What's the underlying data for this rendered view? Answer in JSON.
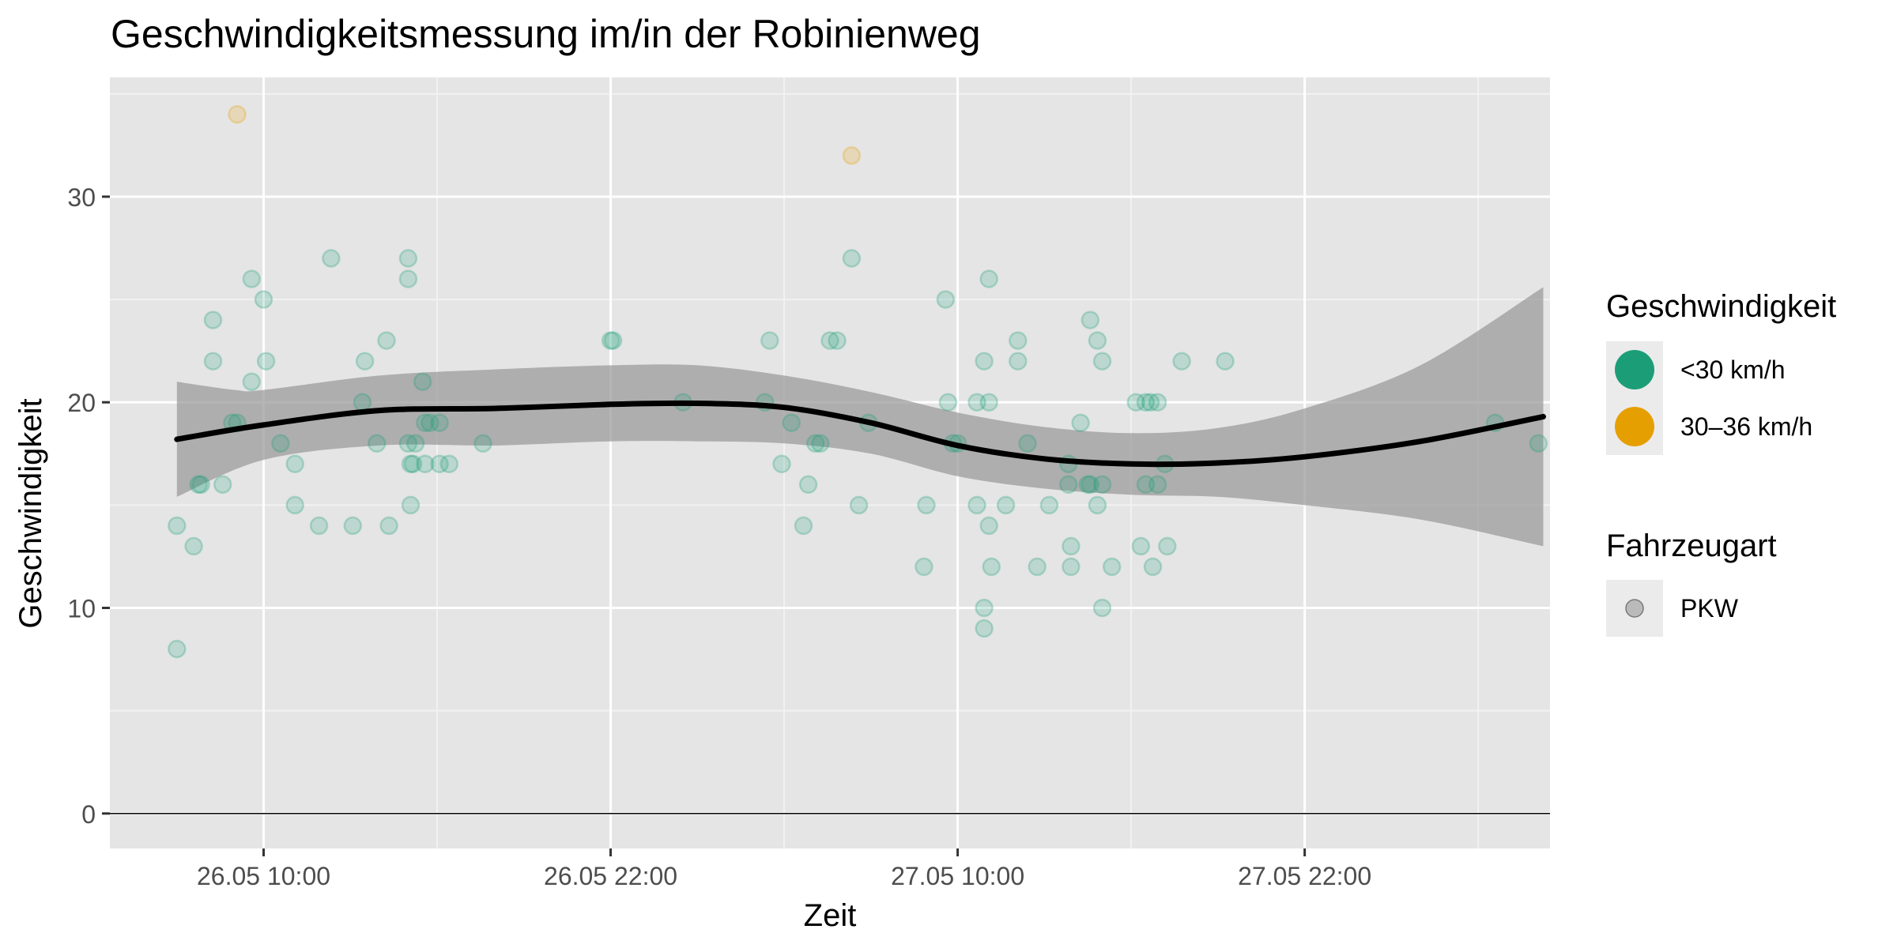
{
  "chart_data": {
    "type": "scatter",
    "title": "Geschwindigkeitsmessung im/in der Robinienweg",
    "xlabel": "Zeit",
    "ylabel": "Geschwindigkeit",
    "x_ticks": [
      "26.05 10:00",
      "26.05 22:00",
      "27.05 10:00",
      "27.05 22:00"
    ],
    "y_ticks": [
      "0",
      "10",
      "20",
      "30"
    ],
    "ylim": [
      -1.7,
      35.8
    ],
    "xlim": [
      "2023-05-26T04:41",
      "2023-05-28T06:29"
    ],
    "grid": true,
    "legend_position": "right",
    "legend": {
      "speed_title": "Geschwindigkeit",
      "speed_items": [
        {
          "label": "<30 km/h",
          "color": "#1b9e77"
        },
        {
          "label": "30–36 km/h",
          "color": "#e69f00"
        }
      ],
      "type_title": "Fahrzeugart",
      "type_items": [
        {
          "label": "PKW",
          "color": "#999999"
        }
      ]
    },
    "series": [
      {
        "category": "<30 km/h",
        "color": "#1b9e77",
        "points": [
          [
            "2023-05-26T07:00",
            8
          ],
          [
            "2023-05-26T07:00",
            14
          ],
          [
            "2023-05-26T07:35",
            13
          ],
          [
            "2023-05-26T07:45",
            16
          ],
          [
            "2023-05-26T07:50",
            16
          ],
          [
            "2023-05-26T08:15",
            24
          ],
          [
            "2023-05-26T08:15",
            22
          ],
          [
            "2023-05-26T08:35",
            16
          ],
          [
            "2023-05-26T08:55",
            19
          ],
          [
            "2023-05-26T09:05",
            19
          ],
          [
            "2023-05-26T09:35",
            26
          ],
          [
            "2023-05-26T09:35",
            21
          ],
          [
            "2023-05-26T10:00",
            25
          ],
          [
            "2023-05-26T10:05",
            22
          ],
          [
            "2023-05-26T10:35",
            18
          ],
          [
            "2023-05-26T11:05",
            15
          ],
          [
            "2023-05-26T11:05",
            17
          ],
          [
            "2023-05-26T11:55",
            14
          ],
          [
            "2023-05-26T12:20",
            27
          ],
          [
            "2023-05-26T13:05",
            14
          ],
          [
            "2023-05-26T13:25",
            20
          ],
          [
            "2023-05-26T13:30",
            22
          ],
          [
            "2023-05-26T13:55",
            18
          ],
          [
            "2023-05-26T14:15",
            23
          ],
          [
            "2023-05-26T14:20",
            14
          ],
          [
            "2023-05-26T15:00",
            27
          ],
          [
            "2023-05-26T15:00",
            26
          ],
          [
            "2023-05-26T15:00",
            18
          ],
          [
            "2023-05-26T15:05",
            15
          ],
          [
            "2023-05-26T15:05",
            17
          ],
          [
            "2023-05-26T15:10",
            17
          ],
          [
            "2023-05-26T15:15",
            18
          ],
          [
            "2023-05-26T15:30",
            21
          ],
          [
            "2023-05-26T15:35",
            19
          ],
          [
            "2023-05-26T15:35",
            17
          ],
          [
            "2023-05-26T15:45",
            19
          ],
          [
            "2023-05-26T16:05",
            19
          ],
          [
            "2023-05-26T16:05",
            17
          ],
          [
            "2023-05-26T16:25",
            17
          ],
          [
            "2023-05-26T17:35",
            18
          ],
          [
            "2023-05-26T22:00",
            23
          ],
          [
            "2023-05-26T22:05",
            23
          ],
          [
            "2023-05-27T00:30",
            20
          ],
          [
            "2023-05-27T03:20",
            20
          ],
          [
            "2023-05-27T03:30",
            23
          ],
          [
            "2023-05-27T03:55",
            17
          ],
          [
            "2023-05-27T04:15",
            19
          ],
          [
            "2023-05-27T04:40",
            14
          ],
          [
            "2023-05-27T04:50",
            16
          ],
          [
            "2023-05-27T05:05",
            18
          ],
          [
            "2023-05-27T05:15",
            18
          ],
          [
            "2023-05-27T05:35",
            23
          ],
          [
            "2023-05-27T05:50",
            23
          ],
          [
            "2023-05-27T06:20",
            27
          ],
          [
            "2023-05-27T06:35",
            15
          ],
          [
            "2023-05-27T06:55",
            19
          ],
          [
            "2023-05-27T08:50",
            12
          ],
          [
            "2023-05-27T08:55",
            15
          ],
          [
            "2023-05-27T09:35",
            25
          ],
          [
            "2023-05-27T09:40",
            20
          ],
          [
            "2023-05-27T09:50",
            18
          ],
          [
            "2023-05-27T10:00",
            18
          ],
          [
            "2023-05-27T10:40",
            15
          ],
          [
            "2023-05-27T10:40",
            20
          ],
          [
            "2023-05-27T10:55",
            22
          ],
          [
            "2023-05-27T10:55",
            10
          ],
          [
            "2023-05-27T10:55",
            9
          ],
          [
            "2023-05-27T11:05",
            26
          ],
          [
            "2023-05-27T11:05",
            20
          ],
          [
            "2023-05-27T11:05",
            14
          ],
          [
            "2023-05-27T11:10",
            12
          ],
          [
            "2023-05-27T11:40",
            15
          ],
          [
            "2023-05-27T12:05",
            23
          ],
          [
            "2023-05-27T12:05",
            22
          ],
          [
            "2023-05-27T12:25",
            18
          ],
          [
            "2023-05-27T12:45",
            12
          ],
          [
            "2023-05-27T13:10",
            15
          ],
          [
            "2023-05-27T13:50",
            17
          ],
          [
            "2023-05-27T13:50",
            16
          ],
          [
            "2023-05-27T13:55",
            13
          ],
          [
            "2023-05-27T13:55",
            12
          ],
          [
            "2023-05-27T14:15",
            19
          ],
          [
            "2023-05-27T14:30",
            16
          ],
          [
            "2023-05-27T14:35",
            24
          ],
          [
            "2023-05-27T14:35",
            16
          ],
          [
            "2023-05-27T14:50",
            15
          ],
          [
            "2023-05-27T14:50",
            23
          ],
          [
            "2023-05-27T15:00",
            22
          ],
          [
            "2023-05-27T15:00",
            16
          ],
          [
            "2023-05-27T15:00",
            10
          ],
          [
            "2023-05-27T15:20",
            12
          ],
          [
            "2023-05-27T16:10",
            20
          ],
          [
            "2023-05-27T16:20",
            13
          ],
          [
            "2023-05-27T16:30",
            16
          ],
          [
            "2023-05-27T16:30",
            20
          ],
          [
            "2023-05-27T16:40",
            20
          ],
          [
            "2023-05-27T16:45",
            12
          ],
          [
            "2023-05-27T16:55",
            20
          ],
          [
            "2023-05-27T16:55",
            16
          ],
          [
            "2023-05-27T17:10",
            17
          ],
          [
            "2023-05-27T17:15",
            13
          ],
          [
            "2023-05-27T17:45",
            22
          ],
          [
            "2023-05-27T19:15",
            22
          ],
          [
            "2023-05-28T04:35",
            19
          ],
          [
            "2023-05-28T06:05",
            18
          ]
        ]
      },
      {
        "category": "30–36 km/h",
        "color": "#e69f00",
        "points": [
          [
            "2023-05-26T09:05",
            34
          ],
          [
            "2023-05-27T06:20",
            32
          ]
        ]
      }
    ],
    "smooth": {
      "color": "#000000",
      "band_color": "#999999",
      "fit": [
        [
          "2023-05-26T07:00",
          18.2
        ],
        [
          "2023-05-26T10:00",
          18.9
        ],
        [
          "2023-05-26T14:00",
          19.6
        ],
        [
          "2023-05-26T18:00",
          19.7
        ],
        [
          "2023-05-26T22:00",
          19.9
        ],
        [
          "2023-05-27T01:00",
          19.95
        ],
        [
          "2023-05-27T04:00",
          19.75
        ],
        [
          "2023-05-27T07:00",
          19.0
        ],
        [
          "2023-05-27T10:00",
          17.9
        ],
        [
          "2023-05-27T13:00",
          17.25
        ],
        [
          "2023-05-27T16:00",
          17.0
        ],
        [
          "2023-05-27T19:00",
          17.05
        ],
        [
          "2023-05-27T22:00",
          17.35
        ],
        [
          "2023-05-28T02:00",
          18.1
        ],
        [
          "2023-05-28T06:15",
          19.3
        ]
      ],
      "upper": [
        [
          "2023-05-26T07:00",
          21.0
        ],
        [
          "2023-05-26T09:00",
          20.6
        ],
        [
          "2023-05-26T10:00",
          20.6
        ],
        [
          "2023-05-26T14:00",
          21.3
        ],
        [
          "2023-05-26T18:00",
          21.6
        ],
        [
          "2023-05-26T22:00",
          21.8
        ],
        [
          "2023-05-27T01:00",
          21.8
        ],
        [
          "2023-05-27T04:00",
          21.3
        ],
        [
          "2023-05-27T07:00",
          20.5
        ],
        [
          "2023-05-27T10:00",
          19.5
        ],
        [
          "2023-05-27T13:00",
          18.8
        ],
        [
          "2023-05-27T16:00",
          18.5
        ],
        [
          "2023-05-27T19:00",
          18.75
        ],
        [
          "2023-05-27T22:00",
          19.7
        ],
        [
          "2023-05-28T02:00",
          21.8
        ],
        [
          "2023-05-28T06:15",
          25.6
        ]
      ],
      "lower": [
        [
          "2023-05-26T07:00",
          15.4
        ],
        [
          "2023-05-26T10:00",
          17.2
        ],
        [
          "2023-05-26T14:00",
          17.9
        ],
        [
          "2023-05-26T18:00",
          17.9
        ],
        [
          "2023-05-26T22:00",
          18.1
        ],
        [
          "2023-05-27T01:00",
          18.1
        ],
        [
          "2023-05-27T04:00",
          18.0
        ],
        [
          "2023-05-27T07:00",
          17.5
        ],
        [
          "2023-05-27T10:00",
          16.4
        ],
        [
          "2023-05-27T13:00",
          15.8
        ],
        [
          "2023-05-27T16:00",
          15.5
        ],
        [
          "2023-05-27T19:00",
          15.4
        ],
        [
          "2023-05-27T22:00",
          15.0
        ],
        [
          "2023-05-28T02:00",
          14.3
        ],
        [
          "2023-05-28T06:15",
          13.0
        ]
      ]
    }
  }
}
